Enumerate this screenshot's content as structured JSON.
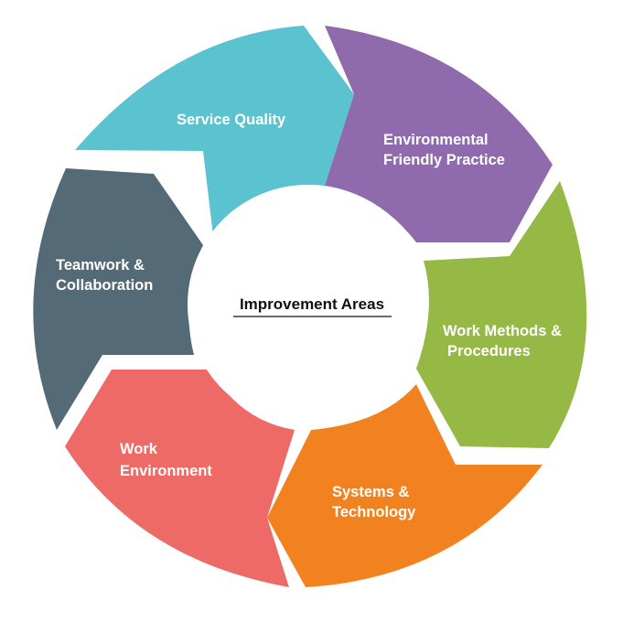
{
  "center": {
    "title": "Improvement Areas"
  },
  "segments": [
    {
      "lines": [
        "Service Quality"
      ],
      "color": "#5bc3cf"
    },
    {
      "lines": [
        "Environmental",
        "Friendly Practice"
      ],
      "color": "#8f6bad"
    },
    {
      "lines": [
        "Work Methods &",
        "Procedures"
      ],
      "color": "#96b844"
    },
    {
      "lines": [
        "Systems &",
        "Technology"
      ],
      "color": "#f28220"
    },
    {
      "lines": [
        "Work",
        "Environment"
      ],
      "color": "#ee6a66"
    },
    {
      "lines": [
        "Teamwork &",
        "Collaboration"
      ],
      "color": "#546a76"
    }
  ]
}
